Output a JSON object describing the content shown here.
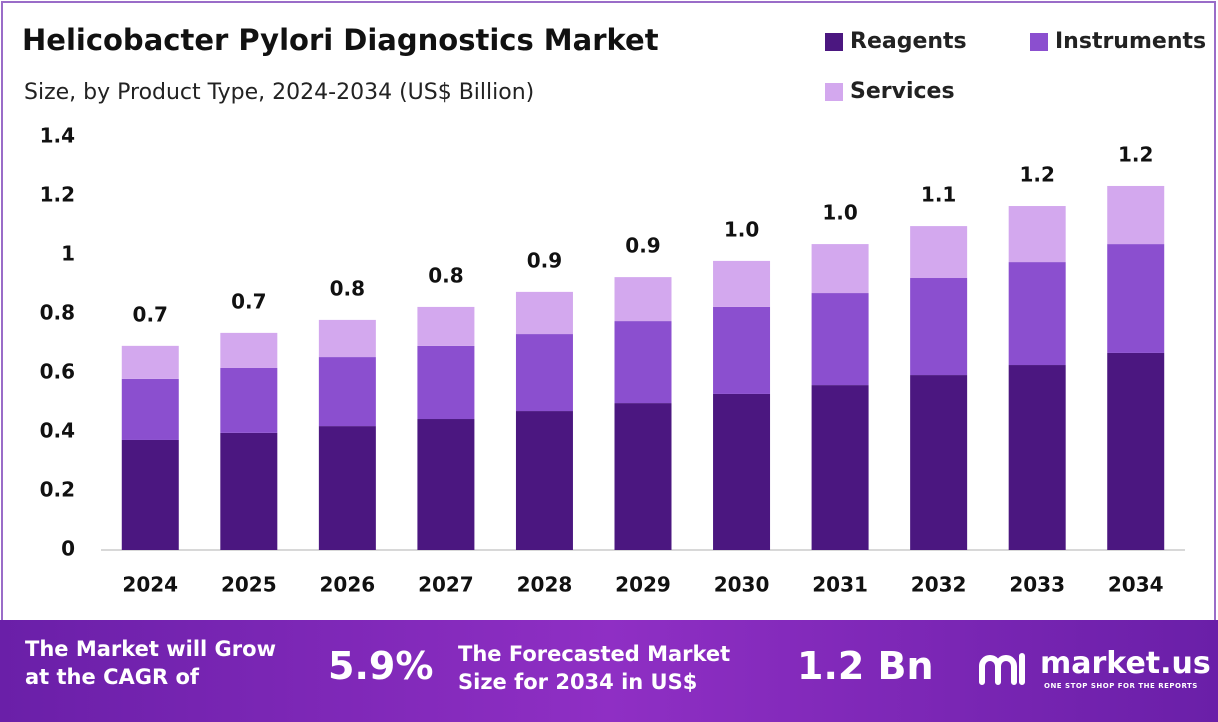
{
  "chart_data": {
    "type": "stacked_bar",
    "title": "Helicobacter Pylori Diagnostics Market",
    "subtitle": "Size, by Product Type, 2024-2034 (US$ Billion)",
    "categories": [
      "2024",
      "2025",
      "2026",
      "2027",
      "2028",
      "2029",
      "2030",
      "2031",
      "2032",
      "2033",
      "2034"
    ],
    "series": [
      {
        "name": "Reagents",
        "color": "#4b1780",
        "values": [
          0.373,
          0.397,
          0.42,
          0.444,
          0.471,
          0.498,
          0.529,
          0.559,
          0.593,
          0.627,
          0.668
        ]
      },
      {
        "name": "Instruments",
        "color": "#8b4fcf",
        "values": [
          0.207,
          0.22,
          0.234,
          0.248,
          0.261,
          0.278,
          0.295,
          0.312,
          0.329,
          0.349,
          0.369
        ]
      },
      {
        "name": "Services",
        "color": "#d3a8ee",
        "values": [
          0.112,
          0.119,
          0.126,
          0.132,
          0.143,
          0.149,
          0.156,
          0.166,
          0.176,
          0.19,
          0.197
        ]
      }
    ],
    "total_labels": [
      "0.7",
      "0.7",
      "0.8",
      "0.8",
      "0.9",
      "0.9",
      "1.0",
      "1.0",
      "1.1",
      "1.2",
      "1.2"
    ],
    "ylim": [
      0,
      1.4
    ],
    "yticks": [
      0,
      0.2,
      0.4,
      0.6,
      0.8,
      1,
      1.2,
      1.4
    ],
    "grid": false
  },
  "footer": {
    "cagr_text": "The Market will Grow at the CAGR of",
    "cagr": "5.9%",
    "forecast_text": "The Forecasted Market Size for 2034 in US$",
    "forecast": "1.2 Bn",
    "brand": "market.us",
    "tagline": "ONE STOP SHOP FOR THE REPORTS"
  }
}
